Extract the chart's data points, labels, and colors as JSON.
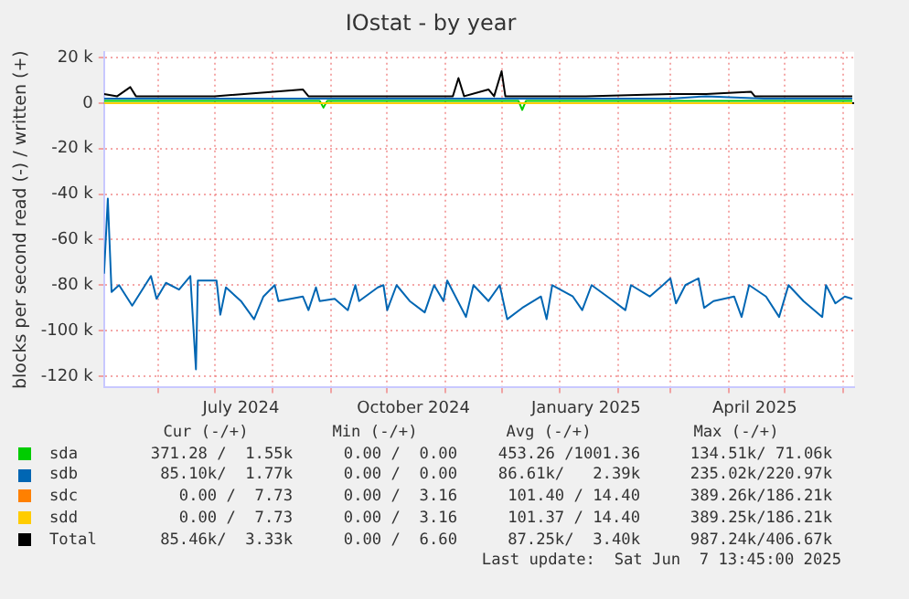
{
  "chart_data": {
    "type": "line",
    "title": "IOstat - by year",
    "ylabel": "blocks per second read (-) / written (+)",
    "xlim": [
      "2024-05-03",
      "2025-06-07"
    ],
    "xticks": [
      {
        "value": "2024-06-01",
        "label": null
      },
      {
        "value": "2024-07-01",
        "label": null
      },
      {
        "value": "2024-07-15",
        "label": "July 2024"
      },
      {
        "value": "2024-08-01",
        "label": null
      },
      {
        "value": "2024-09-01",
        "label": null
      },
      {
        "value": "2024-10-01",
        "label": null
      },
      {
        "value": "2024-10-15",
        "label": "October 2024"
      },
      {
        "value": "2024-11-01",
        "label": null
      },
      {
        "value": "2024-12-01",
        "label": null
      },
      {
        "value": "2025-01-01",
        "label": null
      },
      {
        "value": "2025-01-15",
        "label": "January 2025"
      },
      {
        "value": "2025-02-01",
        "label": null
      },
      {
        "value": "2025-03-01",
        "label": null
      },
      {
        "value": "2025-04-01",
        "label": null
      },
      {
        "value": "2025-04-15",
        "label": "April 2025"
      },
      {
        "value": "2025-05-01",
        "label": null
      },
      {
        "value": "2025-06-01",
        "label": null
      }
    ],
    "ylim": [
      -125000,
      22500
    ],
    "yticks": [
      {
        "value": -120000,
        "label": "-120 k"
      },
      {
        "value": -100000,
        "label": "-100 k"
      },
      {
        "value": -80000,
        "label": "-80 k"
      },
      {
        "value": -60000,
        "label": "-60 k"
      },
      {
        "value": -40000,
        "label": "-40 k"
      },
      {
        "value": -20000,
        "label": "-20 k"
      },
      0,
      {
        "value": 20000,
        "label": "20 k"
      }
    ],
    "grid": true,
    "legend": "bottom",
    "marker": "none",
    "line_style": "solid",
    "series": [
      {
        "name": "sda",
        "color": "#00cc00",
        "x": [
          "2024-05-03",
          "2024-06-15",
          "2024-08-26",
          "2024-08-28",
          "2024-08-30",
          "2024-10-20",
          "2024-12-10",
          "2024-12-12",
          "2024-12-14",
          "2025-02-20",
          "2025-04-10",
          "2025-06-06"
        ],
        "values": [
          1000,
          1000,
          1000,
          -2000,
          1000,
          1000,
          1000,
          -3000,
          1000,
          1000,
          1000,
          1000
        ]
      },
      {
        "name": "sdb",
        "color": "#0066b3",
        "x": [
          "2024-05-03",
          "2024-05-05",
          "2024-05-07",
          "2024-05-11",
          "2024-05-18",
          "2024-05-28",
          "2024-05-31",
          "2024-06-05",
          "2024-06-12",
          "2024-06-18",
          "2024-06-21",
          "2024-06-22",
          "2024-07-02",
          "2024-07-04",
          "2024-07-07",
          "2024-07-15",
          "2024-07-22",
          "2024-07-27",
          "2024-08-02",
          "2024-08-04",
          "2024-08-17",
          "2024-08-20",
          "2024-08-24",
          "2024-08-26",
          "2024-09-03",
          "2024-09-10",
          "2024-09-14",
          "2024-09-16",
          "2024-09-26",
          "2024-09-29",
          "2024-10-01",
          "2024-10-06",
          "2024-10-13",
          "2024-10-21",
          "2024-10-26",
          "2024-10-31",
          "2024-11-02",
          "2024-11-12",
          "2024-11-16",
          "2024-11-24",
          "2024-11-30",
          "2024-12-04",
          "2024-12-12",
          "2024-12-22",
          "2024-12-25",
          "2024-12-28",
          "2025-01-08",
          "2025-01-13",
          "2025-01-18",
          "2025-01-28",
          "2025-02-05",
          "2025-02-08",
          "2025-02-18",
          "2025-02-25",
          "2025-03-01",
          "2025-03-04",
          "2025-03-09",
          "2025-03-16",
          "2025-03-19",
          "2025-03-24",
          "2025-04-04",
          "2025-04-08",
          "2025-04-12",
          "2025-04-21",
          "2025-04-28",
          "2025-05-03",
          "2025-05-11",
          "2025-05-21",
          "2025-05-23",
          "2025-05-28",
          "2025-06-02",
          "2025-06-06"
        ],
        "values": [
          -75000,
          -42000,
          -83000,
          -80000,
          -89000,
          -76000,
          -86000,
          -79000,
          -82000,
          -76000,
          -117000,
          -78000,
          -78000,
          -93000,
          -81000,
          -87000,
          -95000,
          -85000,
          -80000,
          -87000,
          -85000,
          -91000,
          -81000,
          -87000,
          -86000,
          -91000,
          -80000,
          -87000,
          -81000,
          -80000,
          -91000,
          -80000,
          -87000,
          -92000,
          -80000,
          -87000,
          -78000,
          -94000,
          -80000,
          -87000,
          -80000,
          -95000,
          -90000,
          -85000,
          -95000,
          -80000,
          -85000,
          -91000,
          -80000,
          -86000,
          -91000,
          -80000,
          -85000,
          -80000,
          -77000,
          -88000,
          -80000,
          -77000,
          -90000,
          -87000,
          -85000,
          -94000,
          -80000,
          -85000,
          -94000,
          -80000,
          -87000,
          -94000,
          -80000,
          -88000,
          -85000,
          -86000
        ]
      },
      {
        "color": "#0066b3",
        "x": [
          "2024-05-03",
          "2024-06-10",
          "2024-08-01",
          "2024-09-20",
          "2024-11-10",
          "2025-01-05",
          "2025-03-01",
          "2025-03-20",
          "2025-04-20",
          "2025-06-06"
        ],
        "values": [
          2000,
          2000,
          2000,
          2000,
          2000,
          2000,
          2000,
          3000,
          2000,
          2000
        ]
      },
      {
        "name": "sdc",
        "color": "#ff8000"
      },
      {
        "name": "sdd",
        "color": "#ffcc00",
        "x": [
          "2024-05-03",
          "2025-06-06"
        ],
        "values": [
          0,
          0
        ]
      },
      {
        "name": "Total",
        "color": "#000000",
        "x": [
          "2024-05-03",
          "2024-05-10",
          "2024-05-17",
          "2024-05-20",
          "2024-07-01",
          "2024-08-17",
          "2024-08-20",
          "2024-11-05",
          "2024-11-08",
          "2024-11-11",
          "2024-11-24",
          "2024-11-27",
          "2024-12-01",
          "2024-12-03",
          "2025-01-15",
          "2025-03-01",
          "2025-03-20",
          "2025-04-13",
          "2025-04-15",
          "2025-06-06"
        ],
        "values": [
          4000,
          3000,
          7000,
          3000,
          3000,
          6000,
          3000,
          3000,
          11000,
          3000,
          6000,
          3000,
          14000,
          3000,
          3000,
          4000,
          4000,
          5000,
          3000,
          3000
        ]
      }
    ],
    "annotations": [
      "Cur (-/+)",
      "Min (-/+)",
      "Avg (-/+)",
      "Max (-/+)",
      "371.28 /  1.55k",
      "0.00 /  0.00",
      "453.26 /1001.36",
      "134.51k/ 71.06k",
      "85.10k/  1.77k",
      "0.00 /  0.00",
      "86.61k/   2.39k",
      "235.02k/220.97k",
      "0.00 /  7.73",
      "0.00 /  3.16",
      "101.40 / 14.40",
      "389.26k/186.21k",
      "0.00 /  7.73",
      "0.00 /  3.16",
      "101.37 / 14.40",
      "389.25k/186.21k",
      "85.46k/  3.33k",
      "0.00 /  6.60",
      "87.25k/  3.40k",
      "987.24k/406.67k",
      "Last update:  Sat Jun  7 13:45:00 2025"
    ]
  }
}
